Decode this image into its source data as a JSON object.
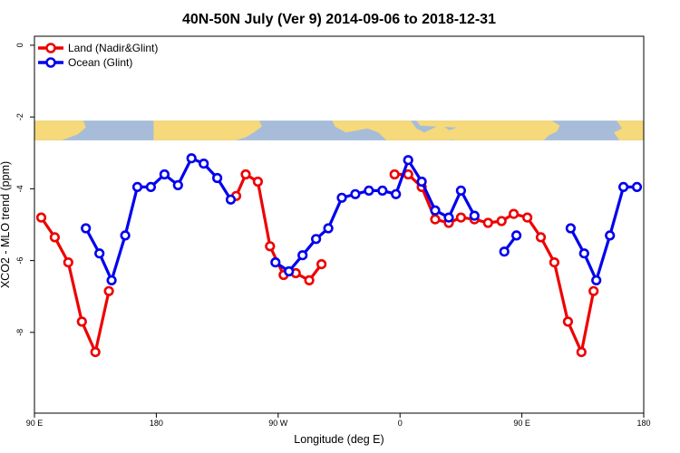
{
  "chart_data": {
    "type": "line",
    "title": "40N-50N July (Ver 9)   2014-09-06 to 2018-12-31",
    "xlabel": "Longitude (deg E)",
    "ylabel": "XCO2 - MLO trend (ppm)",
    "xlim": [
      90,
      540
    ],
    "ylim": [
      -10.25,
      0.25
    ],
    "x_ticks": [
      {
        "value": 90,
        "label": "90 E"
      },
      {
        "value": 180,
        "label": "180"
      },
      {
        "value": 270,
        "label": "90 W"
      },
      {
        "value": 360,
        "label": "0"
      },
      {
        "value": 450,
        "label": "90 E"
      },
      {
        "value": 540,
        "label": "180"
      }
    ],
    "y_ticks": [
      {
        "value": 0,
        "label": "0"
      },
      {
        "value": -2,
        "label": "-2"
      },
      {
        "value": -4,
        "label": "-4"
      },
      {
        "value": -6,
        "label": "-6"
      },
      {
        "value": -8,
        "label": "-8"
      }
    ],
    "legend": {
      "position": "top-left"
    },
    "map_band": {
      "ymin": -2.65,
      "ymax": -2.1,
      "land_color": "#f5d97a",
      "ocean_color": "#a7bcd9"
    },
    "series": [
      {
        "name": "Land (Nadir&Glint)",
        "color": "#ee0000",
        "segments": [
          [
            [
              95,
              -4.8
            ],
            [
              105,
              -5.35
            ],
            [
              115,
              -6.05
            ],
            [
              125,
              -7.7
            ],
            [
              135,
              -8.55
            ],
            [
              145,
              -6.85
            ]
          ],
          [
            [
              239,
              -4.2
            ],
            [
              246,
              -3.6
            ],
            [
              255,
              -3.8
            ],
            [
              264,
              -5.6
            ],
            [
              274,
              -6.4
            ],
            [
              283,
              -6.35
            ],
            [
              293,
              -6.55
            ],
            [
              302,
              -6.1
            ]
          ],
          [
            [
              356,
              -3.6
            ],
            [
              366,
              -3.6
            ],
            [
              376,
              -3.95
            ],
            [
              386,
              -4.85
            ],
            [
              396,
              -4.95
            ],
            [
              405,
              -4.8
            ],
            [
              415,
              -4.85
            ],
            [
              425,
              -4.95
            ],
            [
              435,
              -4.9
            ],
            [
              444,
              -4.7
            ],
            [
              454,
              -4.8
            ],
            [
              464,
              -5.35
            ],
            [
              474,
              -6.05
            ],
            [
              484,
              -7.7
            ],
            [
              494,
              -8.55
            ],
            [
              503,
              -6.85
            ]
          ]
        ]
      },
      {
        "name": "Ocean (Glint)",
        "color": "#0000ee",
        "segments": [
          [
            [
              128,
              -5.1
            ],
            [
              138,
              -5.8
            ],
            [
              147,
              -6.55
            ],
            [
              157,
              -5.3
            ],
            [
              166,
              -3.95
            ],
            [
              176,
              -3.95
            ],
            [
              186,
              -3.6
            ],
            [
              196,
              -3.9
            ],
            [
              206,
              -3.15
            ],
            [
              215,
              -3.3
            ],
            [
              225,
              -3.7
            ],
            [
              235,
              -4.3
            ]
          ],
          [
            [
              268,
              -6.05
            ],
            [
              278,
              -6.3
            ],
            [
              288,
              -5.85
            ],
            [
              298,
              -5.4
            ],
            [
              307,
              -5.1
            ],
            [
              317,
              -4.25
            ],
            [
              327,
              -4.15
            ],
            [
              337,
              -4.05
            ],
            [
              347,
              -4.05
            ],
            [
              357,
              -4.15
            ],
            [
              366,
              -3.2
            ],
            [
              376,
              -3.8
            ],
            [
              386,
              -4.6
            ],
            [
              396,
              -4.8
            ],
            [
              405,
              -4.05
            ],
            [
              415,
              -4.75
            ]
          ],
          [
            [
              437,
              -5.75
            ],
            [
              446,
              -5.3
            ]
          ],
          [
            [
              486,
              -5.1
            ],
            [
              496,
              -5.8
            ],
            [
              505,
              -6.55
            ],
            [
              515,
              -5.3
            ],
            [
              525,
              -3.95
            ],
            [
              535,
              -3.95
            ]
          ]
        ]
      }
    ]
  }
}
